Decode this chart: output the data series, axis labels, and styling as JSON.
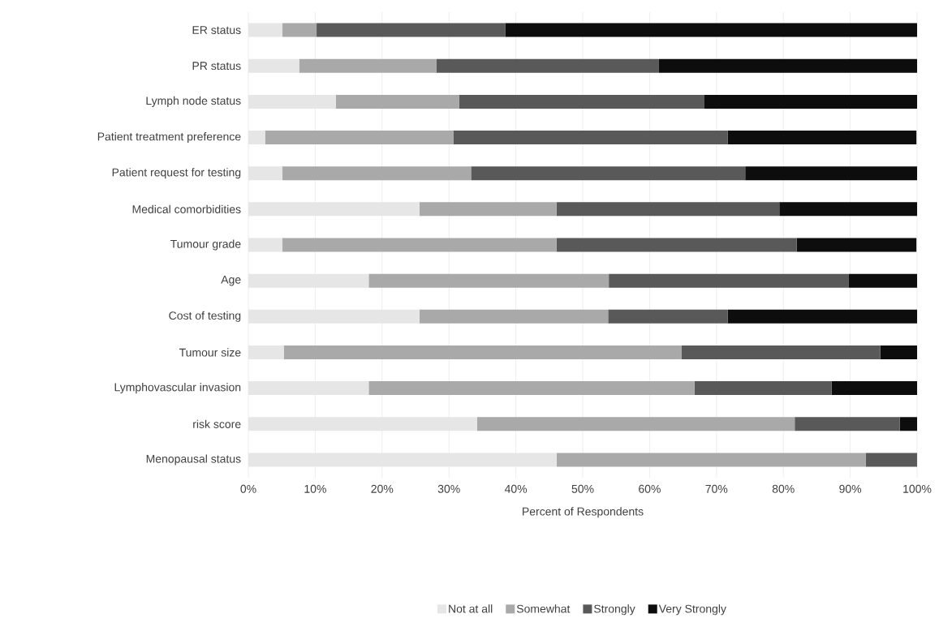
{
  "chart_data": {
    "type": "bar",
    "orientation": "horizontal",
    "stacked": true,
    "xlabel": "Percent of Respondents",
    "categories": [
      "ER status",
      "PR status",
      "Lymph node status",
      "Patient treatment preference",
      "Patient request for testing",
      "Medical comorbidities",
      "Tumour grade",
      "Age",
      "Cost of testing",
      "Tumour size",
      "Lymphovascular invasion",
      "risk score",
      "Menopausal status"
    ],
    "series": [
      {
        "name": "Not at all",
        "color": "#e6e6e6",
        "values": [
          5.1,
          7.6,
          13.1,
          2.5,
          5.1,
          25.6,
          5.1,
          18.0,
          25.6,
          5.3,
          18.0,
          34.2,
          46.1
        ]
      },
      {
        "name": "Somewhat",
        "color": "#a9a9a9",
        "values": [
          5.1,
          20.5,
          18.4,
          28.2,
          28.2,
          20.5,
          41.0,
          35.9,
          28.2,
          59.5,
          48.7,
          47.5,
          46.2
        ]
      },
      {
        "name": "Strongly",
        "color": "#595959",
        "values": [
          28.2,
          33.3,
          36.7,
          41.0,
          41.0,
          33.3,
          35.9,
          35.9,
          17.9,
          29.7,
          20.5,
          15.7,
          7.7
        ]
      },
      {
        "name": "Very Strongly",
        "color": "#0d0d0d",
        "values": [
          61.6,
          38.6,
          31.8,
          28.2,
          25.7,
          20.6,
          17.9,
          10.2,
          28.3,
          5.5,
          12.8,
          2.6,
          0
        ]
      }
    ],
    "xlim": [
      0,
      100
    ],
    "xticks": [
      {
        "value": 0,
        "label": "0%"
      },
      {
        "value": 10,
        "label": "10%"
      },
      {
        "value": 20,
        "label": "20%"
      },
      {
        "value": 30,
        "label": "30%"
      },
      {
        "value": 40,
        "label": "40%"
      },
      {
        "value": 50,
        "label": "50%"
      },
      {
        "value": 60,
        "label": "60%"
      },
      {
        "value": 70,
        "label": "70%"
      },
      {
        "value": 80,
        "label": "80%"
      },
      {
        "value": 90,
        "label": "90%"
      },
      {
        "value": 100,
        "label": "100%"
      }
    ],
    "grid": "x",
    "legend": "bottom"
  }
}
